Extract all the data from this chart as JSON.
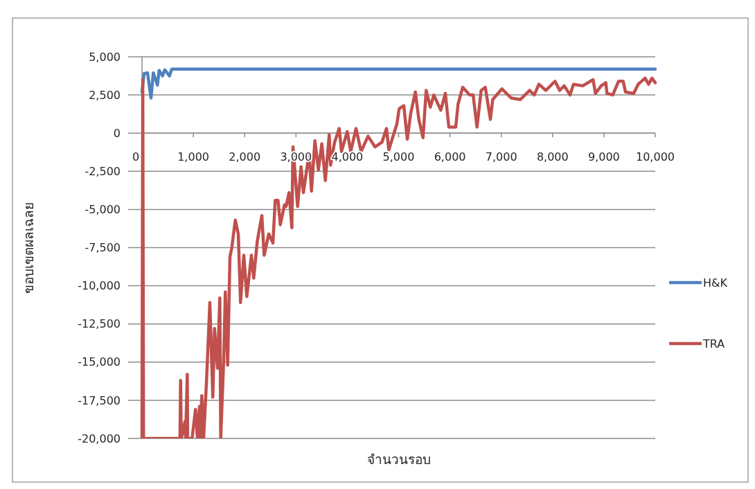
{
  "chart_data": {
    "type": "line",
    "xlabel": "จำนวนรอบ",
    "ylabel": "ขอบเขตผลเฉลย",
    "xlim": [
      0,
      10000
    ],
    "ylim": [
      -20000,
      5000
    ],
    "xticks": [
      0,
      {
        "value": 1000,
        "label": "1,000"
      },
      {
        "value": 2000,
        "label": "2,000"
      },
      {
        "value": 3000,
        "label": "3,000"
      },
      {
        "value": 4000,
        "label": "4,000"
      },
      {
        "value": 5000,
        "label": "5,000"
      },
      {
        "value": 6000,
        "label": "6,000"
      },
      {
        "value": 7000,
        "label": "7,000"
      },
      {
        "value": 8000,
        "label": "8,000"
      },
      {
        "value": 9000,
        "label": "9,000"
      },
      {
        "value": 10000,
        "label": "10,000"
      }
    ],
    "yticks": [
      {
        "value": 5000,
        "label": "5,000"
      },
      {
        "value": 2500,
        "label": "2,500"
      },
      0,
      {
        "value": -2500,
        "label": "-2,500"
      },
      {
        "value": -5000,
        "label": "-5,000"
      },
      {
        "value": -7500,
        "label": "-7,500"
      },
      {
        "value": -10000,
        "label": "-10,000"
      },
      {
        "value": -12500,
        "label": "-12,500"
      },
      {
        "value": -15000,
        "label": "-15,000"
      },
      {
        "value": -17500,
        "label": "-17,500"
      },
      {
        "value": -20000,
        "label": "-20,000"
      }
    ],
    "grid": "y",
    "legend": "right",
    "line_style": "solid",
    "marker": "none",
    "series": [
      {
        "name": "H&K",
        "color": "#4f81bd",
        "x": [
          0,
          40,
          108,
          175,
          220,
          301,
          333,
          400,
          445,
          535,
          580,
          895,
          10000
        ],
        "values": [
          2700,
          3900,
          3950,
          2300,
          3950,
          3150,
          4100,
          3750,
          4150,
          3750,
          4200,
          4200,
          4200
        ]
      },
      {
        "name": "TRA",
        "color": "#c0504d",
        "x": [
          0,
          15,
          30,
          740,
          752,
          765,
          837,
          850,
          882,
          890,
          976,
          1043,
          1080,
          1120,
          1140,
          1165,
          1200,
          1255,
          1322,
          1380,
          1413,
          1471,
          1516,
          1534,
          1592,
          1624,
          1669,
          1714,
          1750,
          1818,
          1876,
          1920,
          1984,
          2042,
          2132,
          2177,
          2245,
          2335,
          2380,
          2470,
          2551,
          2596,
          2650,
          2695,
          2776,
          2807,
          2865,
          2920,
          2942,
          3032,
          3099,
          3144,
          3257,
          3302,
          3369,
          3437,
          3504,
          3572,
          3648,
          3675,
          3752,
          3842,
          3887,
          3999,
          4067,
          4170,
          4269,
          4404,
          4539,
          4674,
          4764,
          4809,
          4966,
          5011,
          5101,
          5169,
          5236,
          5326,
          5394,
          5475,
          5537,
          5618,
          5686,
          5821,
          5911,
          5978,
          6113,
          6158,
          6248,
          6383,
          6451,
          6527,
          6608,
          6689,
          6788,
          6833,
          7013,
          7193,
          7372,
          7552,
          7642,
          7733,
          7868,
          8047,
          8137,
          8227,
          8340,
          8407,
          8587,
          8789,
          8835,
          8947,
          9037,
          9060,
          9172,
          9285,
          9375,
          9420,
          9578,
          9667,
          9802,
          9870,
          9937,
          10000
        ],
        "values": [
          -20000,
          3500,
          -20000,
          -20000,
          -16200,
          -20000,
          -18900,
          -20000,
          -15800,
          -20000,
          -20000,
          -18100,
          -20000,
          -17900,
          -20000,
          -17200,
          -20000,
          -16400,
          -11100,
          -17300,
          -12800,
          -15400,
          -10800,
          -20000,
          -14800,
          -10400,
          -15200,
          -8100,
          -7500,
          -5700,
          -6600,
          -11100,
          -8000,
          -10700,
          -8000,
          -9500,
          -7100,
          -5400,
          -8000,
          -6600,
          -7200,
          -4400,
          -4400,
          -6000,
          -4700,
          -4800,
          -3900,
          -6200,
          -900,
          -4800,
          -2200,
          -3900,
          -1300,
          -3800,
          -500,
          -2400,
          -700,
          -3100,
          -100,
          -2100,
          -600,
          300,
          -1200,
          100,
          -1200,
          300,
          -1200,
          -200,
          -900,
          -600,
          300,
          -1100,
          600,
          1600,
          1800,
          -400,
          1300,
          2700,
          900,
          -300,
          2800,
          1700,
          2500,
          1500,
          2600,
          400,
          400,
          1900,
          3000,
          2500,
          2500,
          400,
          2800,
          3000,
          900,
          2200,
          2900,
          2300,
          2200,
          2800,
          2500,
          3200,
          2800,
          3400,
          2800,
          3100,
          2500,
          3200,
          3100,
          3500,
          2600,
          3100,
          3300,
          2600,
          2500,
          3400,
          3400,
          2700,
          2600,
          3200,
          3600,
          3200,
          3600,
          3300
        ]
      }
    ]
  }
}
